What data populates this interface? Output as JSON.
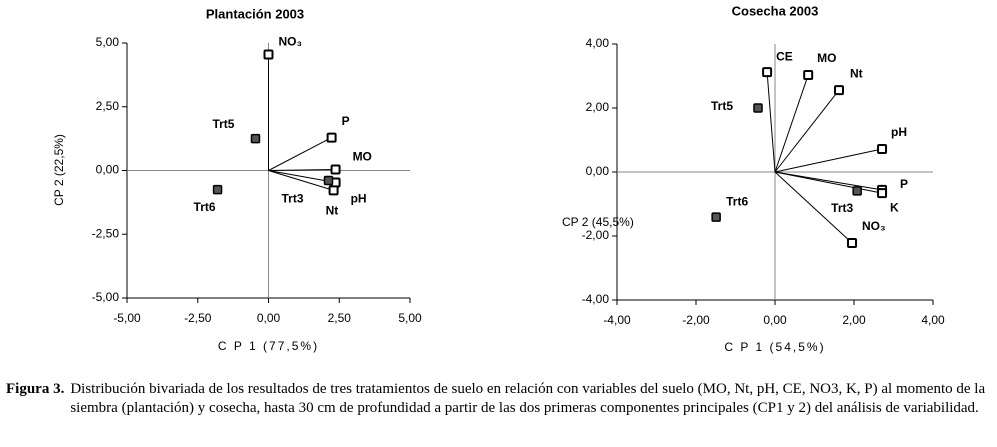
{
  "chart_data": [
    {
      "type": "biplot",
      "title": "Plantación 2003",
      "x_label": "C P 1 (77,5%)",
      "y_label": "CP 2 (22,5%)",
      "xlim": [
        -5,
        5
      ],
      "ylim": [
        -5,
        5
      ],
      "xticks": [
        {
          "value": -5,
          "label": "-5,00"
        },
        {
          "value": -2.5,
          "label": "-2,50"
        },
        {
          "value": 0,
          "label": "0,00"
        },
        {
          "value": 2.5,
          "label": "2,50"
        },
        {
          "value": 5,
          "label": "5,00"
        }
      ],
      "yticks": [
        {
          "value": -5,
          "label": "-5,00"
        },
        {
          "value": -2.5,
          "label": "-2,50"
        },
        {
          "value": 0,
          "label": "0,00"
        },
        {
          "value": 2.5,
          "label": "2,50"
        },
        {
          "value": 5,
          "label": "5,00"
        }
      ],
      "vectors": {
        "labels": [
          "NO₃",
          "P",
          "MO",
          "pH",
          "Nt"
        ],
        "x": [
          0,
          2.23,
          2.37,
          2.37,
          2.3
        ],
        "y": [
          4.55,
          1.29,
          0.04,
          -0.47,
          -0.78
        ],
        "color": "#ffffff"
      },
      "groups": {
        "labels": [
          "Trt5",
          "Trt6",
          "Trt3"
        ],
        "x": [
          -0.46,
          -1.8,
          2.12
        ],
        "y": [
          1.25,
          -0.75,
          -0.39
        ],
        "color": "#555555"
      }
    },
    {
      "type": "biplot",
      "title": "Cosecha 2003",
      "x_label": "C P 1 (54,5%)",
      "y_label": "CP 2 (45,5%)",
      "xlim": [
        -4,
        4
      ],
      "ylim": [
        -4,
        4
      ],
      "xticks": [
        {
          "value": -4,
          "label": "-4,00"
        },
        {
          "value": -2,
          "label": "-2,00"
        },
        {
          "value": 0,
          "label": "0,00"
        },
        {
          "value": 2,
          "label": "2,00"
        },
        {
          "value": 4,
          "label": "4,00"
        }
      ],
      "yticks": [
        {
          "value": -4,
          "label": "-4,00"
        },
        {
          "value": -2,
          "label": "-2,00"
        },
        {
          "value": 0,
          "label": "0,00"
        },
        {
          "value": 2,
          "label": "2,00"
        },
        {
          "value": 4,
          "label": "4,00"
        }
      ],
      "vectors": {
        "labels": [
          "CE",
          "MO",
          "Nt",
          "pH",
          "P",
          "K",
          "NO₃"
        ],
        "x": [
          -0.2,
          0.84,
          1.62,
          2.71,
          2.71,
          2.71,
          1.95
        ],
        "y": [
          3.12,
          3.03,
          2.56,
          0.72,
          -0.56,
          -0.66,
          -2.22
        ],
        "color": "#ffffff"
      },
      "groups": {
        "labels": [
          "Trt5",
          "Trt6",
          "Trt3"
        ],
        "x": [
          -0.43,
          -1.49,
          2.08
        ],
        "y": [
          2.0,
          -1.41,
          -0.59
        ],
        "color": "#555555"
      }
    }
  ],
  "caption": {
    "label": "Figura 3.",
    "text": "Distribución bivariada de los resultados de tres tratamientos de suelo en relación con variables del suelo (MO, Nt, pH, CE, NO3, K, P) al momento de la siembra (plantación) y cosecha, hasta 30 cm de profundidad a partir de las dos primeras componentes principales (CP1 y 2) del análisis de variabilidad."
  }
}
